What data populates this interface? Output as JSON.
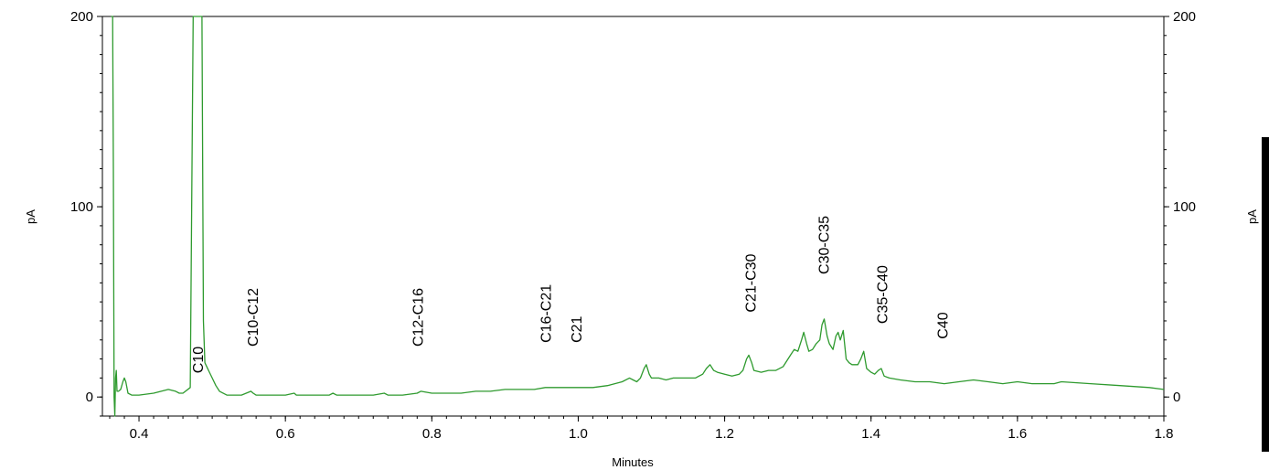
{
  "chart_data": {
    "type": "line",
    "title": "",
    "xlabel": "Minutes",
    "ylabel_left": "pA",
    "ylabel_right": "pA",
    "xlim": [
      0.35,
      1.8
    ],
    "ylim": [
      -10,
      200
    ],
    "x_ticks": [
      "0.4",
      "0.6",
      "0.8",
      "1.0",
      "1.2",
      "1.4",
      "1.6",
      "1.8"
    ],
    "x_tick_values": [
      0.4,
      0.6,
      0.8,
      1.0,
      1.2,
      1.4,
      1.6,
      1.8
    ],
    "y_ticks": [
      "0",
      "100",
      "200"
    ],
    "y_tick_values": [
      0,
      100,
      200
    ],
    "grid": false,
    "line_color": "#2e9a2e",
    "annotations": [
      {
        "text": "C10",
        "x": 0.48,
        "y": 0
      },
      {
        "text": "C10-C12",
        "x": 0.555,
        "y": 14
      },
      {
        "text": "C12-C16",
        "x": 0.78,
        "y": 14
      },
      {
        "text": "C16-C21",
        "x": 0.955,
        "y": 16
      },
      {
        "text": "C21",
        "x": 0.997,
        "y": 16
      },
      {
        "text": "C21-C30",
        "x": 1.235,
        "y": 32
      },
      {
        "text": "C30-C35",
        "x": 1.335,
        "y": 52
      },
      {
        "text": "C35-C40",
        "x": 1.415,
        "y": 26
      },
      {
        "text": "C40",
        "x": 1.497,
        "y": 18
      }
    ],
    "series": [
      {
        "x": [
          0.362,
          0.364,
          0.365,
          0.366,
          0.367,
          0.368,
          0.369,
          0.37,
          0.372,
          0.375,
          0.378,
          0.38,
          0.382,
          0.385,
          0.39,
          0.4,
          0.42,
          0.44,
          0.45,
          0.455,
          0.46,
          0.47,
          0.474,
          0.476,
          0.478,
          0.48,
          0.482,
          0.484,
          0.486,
          0.488,
          0.49,
          0.495,
          0.5,
          0.505,
          0.51,
          0.52,
          0.54,
          0.553,
          0.556,
          0.56,
          0.58,
          0.6,
          0.612,
          0.615,
          0.62,
          0.64,
          0.66,
          0.665,
          0.67,
          0.68,
          0.7,
          0.72,
          0.735,
          0.74,
          0.76,
          0.78,
          0.785,
          0.8,
          0.82,
          0.84,
          0.86,
          0.88,
          0.9,
          0.92,
          0.94,
          0.955,
          0.96,
          0.98,
          1.0,
          1.02,
          1.04,
          1.06,
          1.07,
          1.075,
          1.08,
          1.085,
          1.09,
          1.093,
          1.097,
          1.1,
          1.11,
          1.12,
          1.13,
          1.14,
          1.16,
          1.17,
          1.175,
          1.18,
          1.185,
          1.19,
          1.2,
          1.21,
          1.22,
          1.225,
          1.23,
          1.233,
          1.237,
          1.24,
          1.25,
          1.26,
          1.265,
          1.27,
          1.28,
          1.29,
          1.295,
          1.3,
          1.305,
          1.308,
          1.312,
          1.315,
          1.32,
          1.325,
          1.33,
          1.333,
          1.336,
          1.34,
          1.343,
          1.348,
          1.352,
          1.355,
          1.358,
          1.362,
          1.366,
          1.37,
          1.374,
          1.378,
          1.382,
          1.386,
          1.39,
          1.394,
          1.4,
          1.405,
          1.41,
          1.414,
          1.418,
          1.425,
          1.44,
          1.46,
          1.48,
          1.5,
          1.52,
          1.54,
          1.56,
          1.58,
          1.6,
          1.62,
          1.64,
          1.65,
          1.66,
          1.7,
          1.74,
          1.78,
          1.8
        ],
        "y": [
          200,
          200,
          120,
          0,
          -10,
          10,
          14,
          3,
          3,
          4,
          8,
          10,
          8,
          2,
          1,
          1,
          2,
          4,
          3,
          2,
          2,
          5,
          200,
          200,
          200,
          200,
          200,
          200,
          200,
          40,
          18,
          14,
          10,
          6,
          3,
          1,
          1,
          3,
          2,
          1,
          1,
          1,
          2,
          1,
          1,
          1,
          1,
          2,
          1,
          1,
          1,
          1,
          2,
          1,
          1,
          2,
          3,
          2,
          2,
          2,
          3,
          3,
          4,
          4,
          4,
          5,
          5,
          5,
          5,
          5,
          6,
          8,
          10,
          9,
          8,
          10,
          15,
          17,
          12,
          10,
          10,
          9,
          10,
          10,
          10,
          12,
          15,
          17,
          14,
          13,
          12,
          11,
          12,
          14,
          20,
          22,
          18,
          14,
          13,
          14,
          14,
          14,
          16,
          22,
          25,
          24,
          30,
          34,
          28,
          24,
          25,
          28,
          30,
          38,
          41,
          32,
          28,
          25,
          32,
          34,
          30,
          35,
          20,
          18,
          17,
          17,
          17,
          20,
          24,
          15,
          13,
          12,
          14,
          15,
          11,
          10,
          9,
          8,
          8,
          7,
          8,
          9,
          8,
          7,
          8,
          7,
          7,
          7,
          8,
          7,
          6,
          5,
          4
        ]
      }
    ]
  }
}
